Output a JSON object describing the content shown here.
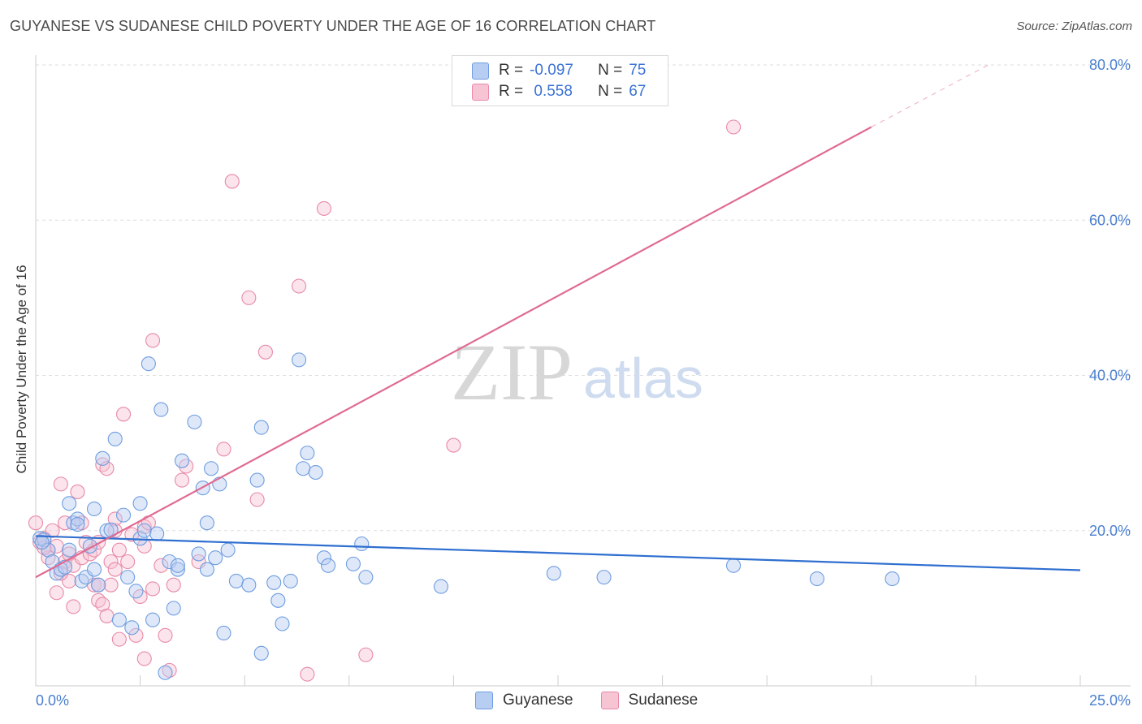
{
  "title": "GUYANESE VS SUDANESE CHILD POVERTY UNDER THE AGE OF 16 CORRELATION CHART",
  "source": "Source: ZipAtlas.com",
  "watermark": {
    "zip": "ZIP",
    "atlas": "atlas"
  },
  "legend": {
    "r_label": "R =",
    "n_label": "N =",
    "rows": [
      {
        "name": "Guyanese",
        "r": "-0.097",
        "n": "75",
        "color": "#6e9de0",
        "fill": "#b7cdf2"
      },
      {
        "name": "Sudanese",
        "r": " 0.558",
        "n": "67",
        "color": "#e88aa8",
        "fill": "#f6c4d3"
      }
    ]
  },
  "colors": {
    "blue_line": "#2f6fd0",
    "pink_line": "#e06b92",
    "grid": "#dddddd"
  },
  "chart_data": {
    "type": "scatter",
    "xlabel": "",
    "ylabel": "Child Poverty Under the Age of 16",
    "xlim": [
      0,
      25
    ],
    "ylim": [
      0,
      80
    ],
    "x_ticks": [
      "0.0%",
      "25.0%"
    ],
    "y_ticks": [
      "20.0%",
      "40.0%",
      "60.0%",
      "80.0%"
    ],
    "y_tick_values": [
      20,
      40,
      60,
      80
    ],
    "grid": true,
    "legend_position": "top-center",
    "series": [
      {
        "name": "Guyanese",
        "trend": {
          "x": [
            0,
            25
          ],
          "y": [
            19.3,
            14.9
          ]
        },
        "points": [
          [
            0.1,
            19.0
          ],
          [
            0.2,
            18.8
          ],
          [
            0.3,
            17.5
          ],
          [
            0.4,
            16.0
          ],
          [
            0.5,
            14.5
          ],
          [
            0.6,
            15.0
          ],
          [
            0.7,
            15.3
          ],
          [
            0.8,
            17.5
          ],
          [
            0.8,
            23.5
          ],
          [
            0.9,
            21.0
          ],
          [
            1.0,
            21.5
          ],
          [
            1.0,
            20.8
          ],
          [
            1.1,
            13.5
          ],
          [
            1.2,
            14.0
          ],
          [
            1.3,
            18.0
          ],
          [
            1.4,
            15.0
          ],
          [
            1.4,
            22.8
          ],
          [
            1.5,
            13.0
          ],
          [
            1.6,
            29.3
          ],
          [
            1.7,
            20.0
          ],
          [
            1.8,
            20.1
          ],
          [
            1.9,
            31.8
          ],
          [
            2.0,
            8.5
          ],
          [
            2.1,
            22.0
          ],
          [
            2.2,
            14.0
          ],
          [
            2.3,
            7.5
          ],
          [
            2.4,
            12.2
          ],
          [
            2.5,
            19.0
          ],
          [
            2.6,
            20.0
          ],
          [
            2.5,
            23.5
          ],
          [
            2.7,
            41.5
          ],
          [
            2.8,
            8.5
          ],
          [
            2.9,
            19.6
          ],
          [
            3.0,
            35.6
          ],
          [
            3.1,
            1.7
          ],
          [
            3.2,
            16.0
          ],
          [
            3.3,
            10.0
          ],
          [
            3.4,
            15.0
          ],
          [
            3.4,
            15.5
          ],
          [
            3.5,
            29.0
          ],
          [
            3.8,
            34.0
          ],
          [
            3.9,
            17.0
          ],
          [
            4.0,
            25.5
          ],
          [
            4.1,
            21.0
          ],
          [
            4.1,
            15.0
          ],
          [
            4.2,
            28.0
          ],
          [
            4.3,
            16.5
          ],
          [
            4.4,
            26.0
          ],
          [
            4.5,
            6.8
          ],
          [
            4.6,
            17.5
          ],
          [
            4.8,
            13.5
          ],
          [
            5.1,
            13.0
          ],
          [
            5.3,
            26.5
          ],
          [
            5.4,
            33.3
          ],
          [
            5.4,
            4.2
          ],
          [
            5.7,
            13.3
          ],
          [
            5.8,
            11.0
          ],
          [
            5.9,
            8.0
          ],
          [
            6.1,
            13.5
          ],
          [
            6.3,
            42.0
          ],
          [
            6.4,
            28.0
          ],
          [
            6.5,
            30.0
          ],
          [
            6.7,
            27.5
          ],
          [
            6.9,
            16.5
          ],
          [
            7.0,
            15.5
          ],
          [
            7.6,
            15.7
          ],
          [
            7.8,
            18.3
          ],
          [
            7.9,
            14.0
          ],
          [
            9.7,
            12.8
          ],
          [
            12.4,
            14.5
          ],
          [
            13.6,
            14.0
          ],
          [
            16.7,
            15.5
          ],
          [
            18.7,
            13.8
          ],
          [
            20.5,
            13.8
          ],
          [
            0.15,
            18.5
          ]
        ]
      },
      {
        "name": "Sudanese",
        "trend": {
          "x": [
            0,
            20
          ],
          "y": [
            14.0,
            72.0
          ]
        },
        "trend_dashed": {
          "x": [
            20,
            22.8
          ],
          "y": [
            72.0,
            80.0
          ]
        },
        "points": [
          [
            0.0,
            21.0
          ],
          [
            0.1,
            18.5
          ],
          [
            0.2,
            19.0
          ],
          [
            0.3,
            17.5
          ],
          [
            0.3,
            16.5
          ],
          [
            0.4,
            20.0
          ],
          [
            0.5,
            18.0
          ],
          [
            0.5,
            12.0
          ],
          [
            0.6,
            26.0
          ],
          [
            0.7,
            16.0
          ],
          [
            0.7,
            21.0
          ],
          [
            0.8,
            13.5
          ],
          [
            0.8,
            17.0
          ],
          [
            0.9,
            15.5
          ],
          [
            0.9,
            10.2
          ],
          [
            1.0,
            25.0
          ],
          [
            1.1,
            16.5
          ],
          [
            1.2,
            18.5
          ],
          [
            1.3,
            17.0
          ],
          [
            1.4,
            17.5
          ],
          [
            1.4,
            13.0
          ],
          [
            1.5,
            18.5
          ],
          [
            1.5,
            11.0
          ],
          [
            1.5,
            13.0
          ],
          [
            1.6,
            10.5
          ],
          [
            1.7,
            9.0
          ],
          [
            1.6,
            28.5
          ],
          [
            1.7,
            28.0
          ],
          [
            1.8,
            16.0
          ],
          [
            1.8,
            13.0
          ],
          [
            1.9,
            21.5
          ],
          [
            1.9,
            20.0
          ],
          [
            2.0,
            6.0
          ],
          [
            2.0,
            17.5
          ],
          [
            2.1,
            35.0
          ],
          [
            2.2,
            16.0
          ],
          [
            2.3,
            19.5
          ],
          [
            2.4,
            6.5
          ],
          [
            2.5,
            11.5
          ],
          [
            2.6,
            20.5
          ],
          [
            2.6,
            3.5
          ],
          [
            2.7,
            21.0
          ],
          [
            2.8,
            44.5
          ],
          [
            2.8,
            12.5
          ],
          [
            3.0,
            15.5
          ],
          [
            3.1,
            6.5
          ],
          [
            3.2,
            2.0
          ],
          [
            3.3,
            13.0
          ],
          [
            3.5,
            26.5
          ],
          [
            3.6,
            28.3
          ],
          [
            3.9,
            16.0
          ],
          [
            4.5,
            30.5
          ],
          [
            4.7,
            65.0
          ],
          [
            5.1,
            50.0
          ],
          [
            5.3,
            24.0
          ],
          [
            5.5,
            43.0
          ],
          [
            6.3,
            51.5
          ],
          [
            6.5,
            1.5
          ],
          [
            6.9,
            61.5
          ],
          [
            7.9,
            4.0
          ],
          [
            10.0,
            31.0
          ],
          [
            16.7,
            72.0
          ],
          [
            0.2,
            17.8
          ],
          [
            0.6,
            14.5
          ],
          [
            1.1,
            21.0
          ],
          [
            1.9,
            15.0
          ],
          [
            2.6,
            18.0
          ]
        ]
      }
    ]
  }
}
